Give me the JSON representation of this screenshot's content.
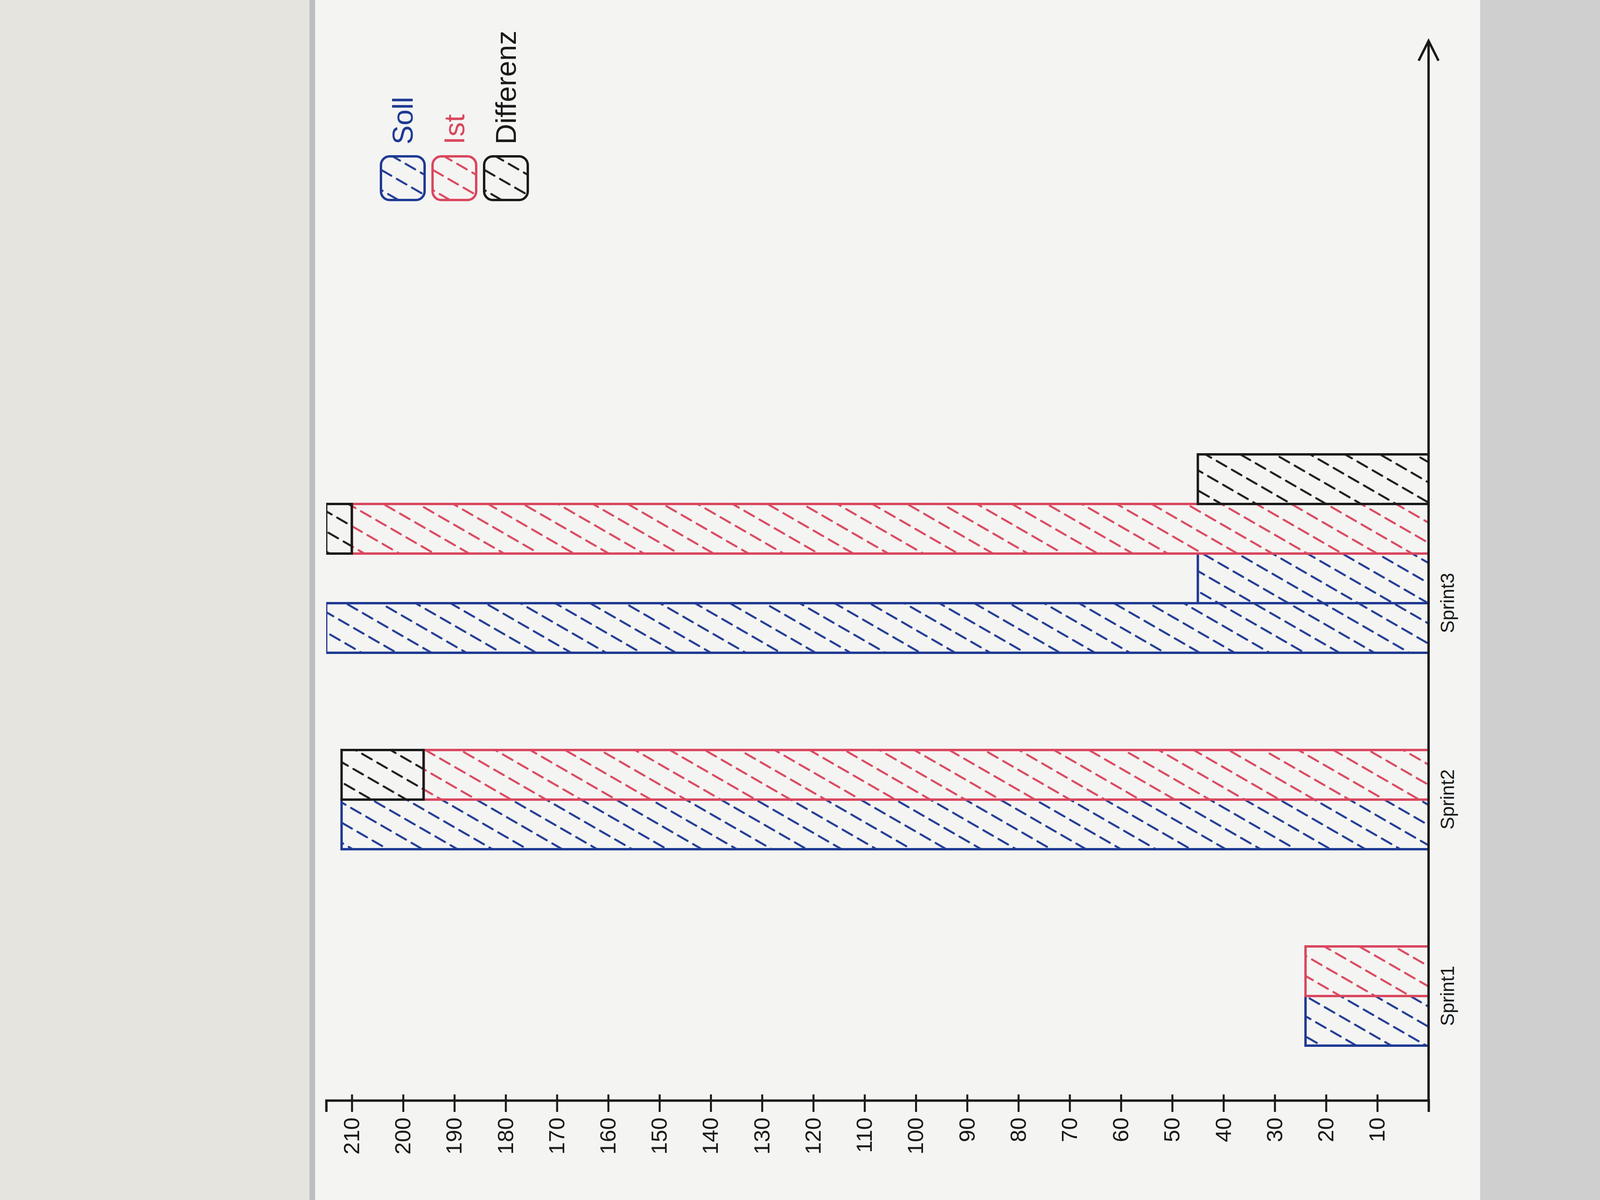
{
  "chart_data": {
    "type": "bar",
    "categories": [
      "Sprint1",
      "Sprint2",
      "Sprint3"
    ],
    "series": [
      {
        "name": "Soll",
        "color": "#1f3a93"
      },
      {
        "name": "Ist",
        "color": "#d9475e"
      },
      {
        "name": "Differenz",
        "color": "#1a1a1a"
      }
    ],
    "bars": [
      [
        [
          {
            "series": "Soll",
            "value": 24
          }
        ],
        [
          {
            "series": "Ist",
            "value": 24
          }
        ]
      ],
      [
        [
          {
            "series": "Soll",
            "value": 212
          }
        ],
        [
          {
            "series": "Ist",
            "value": 196
          },
          {
            "series": "Differenz",
            "value": 16
          }
        ]
      ],
      [
        [
          {
            "series": "Soll",
            "value": 215
          }
        ],
        [
          {
            "series": "Soll",
            "value": 45
          }
        ],
        [
          {
            "series": "Ist",
            "value": 210
          },
          {
            "series": "Differenz",
            "value": 5
          }
        ],
        [
          {
            "series": "Differenz",
            "value": 45
          }
        ]
      ]
    ],
    "stacked": true,
    "legend": "top-right",
    "ylim": [
      0,
      215
    ],
    "yticks": [
      10,
      20,
      30,
      40,
      50,
      60,
      70,
      80,
      90,
      100,
      110,
      120,
      130,
      140,
      150,
      160,
      170,
      180,
      190,
      200,
      210
    ]
  }
}
